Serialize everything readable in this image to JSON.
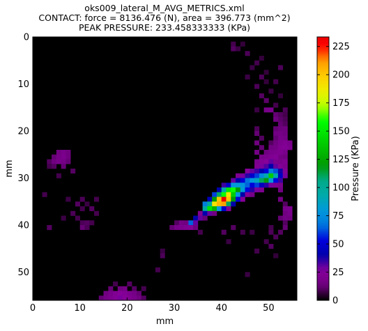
{
  "chart_data": {
    "type": "heatmap",
    "title_lines": [
      "oks009_lateral_M_AVG_METRICS.xml",
      "CONTACT: force = 8136.476 (N), area = 396.773 (mm^2)",
      "PEAK PRESSURE: 233.458333333 (KPa)"
    ],
    "xlabel": "mm",
    "ylabel": "mm",
    "xlim": [
      0,
      56
    ],
    "ylim": [
      0,
      56
    ],
    "y_inverted": true,
    "x_ticks": [
      0,
      10,
      20,
      30,
      40,
      50
    ],
    "y_ticks": [
      0,
      10,
      20,
      30,
      40,
      50
    ],
    "colorbar": {
      "label": "Pressure (KPa)",
      "range": [
        0,
        233.46
      ],
      "ticks": [
        0,
        25,
        50,
        75,
        100,
        125,
        150,
        175,
        200,
        225
      ],
      "colormap": "nipy_spectral"
    },
    "background_value": 0,
    "cells": [
      [
        42,
        1,
        8
      ],
      [
        44,
        1,
        6
      ],
      [
        42,
        2,
        10
      ],
      [
        43,
        2,
        7
      ],
      [
        45,
        3,
        9
      ],
      [
        48,
        4,
        6
      ],
      [
        47,
        5,
        8
      ],
      [
        46,
        6,
        7
      ],
      [
        52,
        6,
        9
      ],
      [
        49,
        7,
        6
      ],
      [
        45,
        8,
        7
      ],
      [
        48,
        8,
        9
      ],
      [
        49,
        9,
        6
      ],
      [
        51,
        9,
        8
      ],
      [
        47,
        10,
        9
      ],
      [
        50,
        11,
        7
      ],
      [
        48,
        12,
        10
      ],
      [
        52,
        12,
        6
      ],
      [
        49,
        13,
        11
      ],
      [
        51,
        14,
        8
      ],
      [
        47,
        15,
        7
      ],
      [
        53,
        15,
        9
      ],
      [
        49,
        15,
        18
      ],
      [
        50,
        15,
        20
      ],
      [
        51,
        16,
        12
      ],
      [
        52,
        16,
        10
      ],
      [
        53,
        16,
        8
      ],
      [
        51,
        17,
        14
      ],
      [
        52,
        17,
        11
      ],
      [
        53,
        17,
        9
      ],
      [
        52,
        18,
        12
      ],
      [
        53,
        18,
        10
      ],
      [
        47,
        19,
        9
      ],
      [
        51,
        19,
        12
      ],
      [
        52,
        19,
        13
      ],
      [
        53,
        19,
        14
      ],
      [
        47,
        20,
        12
      ],
      [
        51,
        20,
        15
      ],
      [
        52,
        20,
        16
      ],
      [
        53,
        20,
        14
      ],
      [
        48,
        21,
        10
      ],
      [
        51,
        21,
        12
      ],
      [
        52,
        21,
        18
      ],
      [
        53,
        21,
        16
      ],
      [
        47,
        22,
        14
      ],
      [
        50,
        22,
        10
      ],
      [
        51,
        22,
        14
      ],
      [
        52,
        22,
        20
      ],
      [
        53,
        22,
        22
      ],
      [
        54,
        22,
        18
      ],
      [
        48,
        23,
        12
      ],
      [
        50,
        23,
        15
      ],
      [
        51,
        23,
        16
      ],
      [
        52,
        23,
        22
      ],
      [
        53,
        23,
        24
      ],
      [
        54,
        23,
        20
      ],
      [
        47,
        24,
        16
      ],
      [
        49,
        24,
        14
      ],
      [
        50,
        24,
        18
      ],
      [
        51,
        24,
        20
      ],
      [
        52,
        24,
        22
      ],
      [
        53,
        24,
        18
      ],
      [
        48,
        25,
        18
      ],
      [
        49,
        25,
        20
      ],
      [
        50,
        25,
        22
      ],
      [
        51,
        25,
        24
      ],
      [
        52,
        25,
        16
      ],
      [
        53,
        25,
        14
      ],
      [
        47,
        26,
        20
      ],
      [
        48,
        26,
        24
      ],
      [
        49,
        26,
        26
      ],
      [
        50,
        26,
        30
      ],
      [
        51,
        26,
        20
      ],
      [
        52,
        26,
        18
      ],
      [
        53,
        26,
        22
      ],
      [
        47,
        27,
        22
      ],
      [
        48,
        27,
        28
      ],
      [
        49,
        27,
        32
      ],
      [
        50,
        27,
        40
      ],
      [
        51,
        27,
        30
      ],
      [
        52,
        27,
        24
      ],
      [
        53,
        27,
        20
      ],
      [
        45,
        28,
        26
      ],
      [
        46,
        28,
        30
      ],
      [
        47,
        28,
        34
      ],
      [
        48,
        28,
        40
      ],
      [
        49,
        28,
        52
      ],
      [
        50,
        28,
        70
      ],
      [
        51,
        28,
        62
      ],
      [
        52,
        28,
        38
      ],
      [
        53,
        28,
        24
      ],
      [
        43,
        29,
        22
      ],
      [
        44,
        29,
        28
      ],
      [
        45,
        29,
        36
      ],
      [
        46,
        29,
        48
      ],
      [
        47,
        29,
        60
      ],
      [
        48,
        29,
        74
      ],
      [
        49,
        29,
        92
      ],
      [
        50,
        29,
        140
      ],
      [
        51,
        29,
        92
      ],
      [
        52,
        29,
        46
      ],
      [
        53,
        29,
        28
      ],
      [
        42,
        30,
        30
      ],
      [
        43,
        30,
        40
      ],
      [
        44,
        30,
        52
      ],
      [
        45,
        30,
        66
      ],
      [
        46,
        30,
        80
      ],
      [
        47,
        30,
        88
      ],
      [
        48,
        30,
        110
      ],
      [
        49,
        30,
        118
      ],
      [
        50,
        30,
        80
      ],
      [
        51,
        30,
        54
      ],
      [
        52,
        30,
        34
      ],
      [
        40,
        31,
        34
      ],
      [
        41,
        31,
        48
      ],
      [
        42,
        31,
        80
      ],
      [
        43,
        31,
        82
      ],
      [
        44,
        31,
        78
      ],
      [
        45,
        31,
        64
      ],
      [
        46,
        31,
        52
      ],
      [
        47,
        31,
        60
      ],
      [
        48,
        31,
        46
      ],
      [
        49,
        31,
        36
      ],
      [
        50,
        31,
        28
      ],
      [
        51,
        31,
        22
      ],
      [
        52,
        31,
        18
      ],
      [
        39,
        32,
        40
      ],
      [
        40,
        32,
        92
      ],
      [
        41,
        32,
        150
      ],
      [
        42,
        32,
        160
      ],
      [
        43,
        32,
        120
      ],
      [
        44,
        32,
        82
      ],
      [
        45,
        32,
        54
      ],
      [
        46,
        32,
        36
      ],
      [
        47,
        32,
        28
      ],
      [
        48,
        32,
        20
      ],
      [
        52,
        32,
        14
      ],
      [
        38,
        33,
        60
      ],
      [
        39,
        33,
        110
      ],
      [
        40,
        33,
        160
      ],
      [
        41,
        33,
        190
      ],
      [
        42,
        33,
        140
      ],
      [
        43,
        33,
        80
      ],
      [
        44,
        33,
        40
      ],
      [
        45,
        33,
        24
      ],
      [
        46,
        33,
        16
      ],
      [
        37,
        34,
        44
      ],
      [
        38,
        34,
        120
      ],
      [
        39,
        34,
        200
      ],
      [
        40,
        34,
        233.46
      ],
      [
        41,
        34,
        200
      ],
      [
        42,
        34,
        120
      ],
      [
        43,
        34,
        50
      ],
      [
        44,
        34,
        24
      ],
      [
        52,
        34,
        14
      ],
      [
        36,
        35,
        70
      ],
      [
        37,
        35,
        100
      ],
      [
        38,
        35,
        190
      ],
      [
        39,
        35,
        205
      ],
      [
        40,
        35,
        210
      ],
      [
        41,
        35,
        110
      ],
      [
        42,
        35,
        40
      ],
      [
        53,
        35,
        10
      ],
      [
        36,
        36,
        96
      ],
      [
        37,
        36,
        150
      ],
      [
        38,
        36,
        130
      ],
      [
        39,
        36,
        80
      ],
      [
        40,
        36,
        48
      ],
      [
        41,
        36,
        22
      ],
      [
        53,
        36,
        18
      ],
      [
        54,
        36,
        20
      ],
      [
        35,
        37,
        22
      ],
      [
        36,
        37,
        40
      ],
      [
        37,
        37,
        30
      ],
      [
        38,
        37,
        14
      ],
      [
        53,
        37,
        14
      ],
      [
        54,
        37,
        18
      ],
      [
        34,
        38,
        40
      ],
      [
        35,
        38,
        30
      ],
      [
        36,
        38,
        12
      ],
      [
        52,
        38,
        12
      ],
      [
        53,
        38,
        16
      ],
      [
        54,
        38,
        14
      ],
      [
        30,
        39,
        10
      ],
      [
        31,
        39,
        16
      ],
      [
        32,
        39,
        14
      ],
      [
        33,
        39,
        64
      ],
      [
        34,
        39,
        30
      ],
      [
        53,
        39,
        10
      ],
      [
        29,
        40,
        12
      ],
      [
        30,
        40,
        18
      ],
      [
        31,
        40,
        20
      ],
      [
        32,
        40,
        22
      ],
      [
        33,
        40,
        24
      ],
      [
        34,
        40,
        14
      ],
      [
        42,
        40,
        10
      ],
      [
        50,
        40,
        8
      ],
      [
        53,
        40,
        12
      ],
      [
        35,
        41,
        8
      ],
      [
        40,
        41,
        10
      ],
      [
        44,
        41,
        8
      ],
      [
        46,
        41,
        7
      ],
      [
        50,
        41,
        9
      ],
      [
        52,
        41,
        10
      ],
      [
        51,
        42,
        9
      ],
      [
        41,
        43,
        7
      ],
      [
        49,
        43,
        8
      ],
      [
        50,
        44,
        10
      ],
      [
        27,
        45,
        7
      ],
      [
        47,
        45,
        8
      ],
      [
        27,
        46,
        9
      ],
      [
        51,
        46,
        6
      ],
      [
        26,
        49,
        8
      ],
      [
        45,
        50,
        7
      ],
      [
        20,
        52,
        10
      ],
      [
        17,
        52,
        8
      ],
      [
        16,
        53,
        12
      ],
      [
        18,
        53,
        14
      ],
      [
        19,
        53,
        16
      ],
      [
        21,
        53,
        10
      ],
      [
        23,
        53,
        8
      ],
      [
        15,
        54,
        14
      ],
      [
        16,
        54,
        18
      ],
      [
        17,
        54,
        22
      ],
      [
        18,
        54,
        26
      ],
      [
        19,
        54,
        24
      ],
      [
        20,
        54,
        20
      ],
      [
        21,
        54,
        16
      ],
      [
        22,
        54,
        12
      ],
      [
        14,
        55,
        12
      ],
      [
        15,
        55,
        16
      ],
      [
        16,
        55,
        20
      ],
      [
        17,
        55,
        24
      ],
      [
        18,
        55,
        28
      ],
      [
        19,
        55,
        26
      ],
      [
        20,
        55,
        22
      ],
      [
        21,
        55,
        18
      ],
      [
        22,
        55,
        14
      ],
      [
        23,
        55,
        10
      ],
      [
        5,
        24,
        14
      ],
      [
        6,
        24,
        18
      ],
      [
        7,
        24,
        14
      ],
      [
        4,
        25,
        12
      ],
      [
        5,
        25,
        16
      ],
      [
        6,
        25,
        20
      ],
      [
        7,
        25,
        14
      ],
      [
        3,
        26,
        10
      ],
      [
        4,
        26,
        14
      ],
      [
        5,
        26,
        18
      ],
      [
        6,
        26,
        16
      ],
      [
        7,
        26,
        12
      ],
      [
        3,
        27,
        8
      ],
      [
        4,
        27,
        10
      ],
      [
        6,
        27,
        12
      ],
      [
        8,
        28,
        10
      ],
      [
        5,
        29,
        8
      ],
      [
        2,
        33,
        8
      ],
      [
        7,
        34,
        7
      ],
      [
        10,
        34,
        9
      ],
      [
        13,
        34,
        8
      ],
      [
        9,
        35,
        10
      ],
      [
        11,
        35,
        7
      ],
      [
        10,
        36,
        8
      ],
      [
        12,
        36,
        10
      ],
      [
        8,
        37,
        9
      ],
      [
        13,
        37,
        8
      ],
      [
        6,
        38,
        7
      ],
      [
        9,
        38,
        8
      ],
      [
        10,
        39,
        9
      ],
      [
        11,
        39,
        10
      ],
      [
        12,
        39,
        8
      ],
      [
        3,
        40,
        10
      ],
      [
        10,
        40,
        12
      ],
      [
        11,
        40,
        9
      ]
    ]
  }
}
